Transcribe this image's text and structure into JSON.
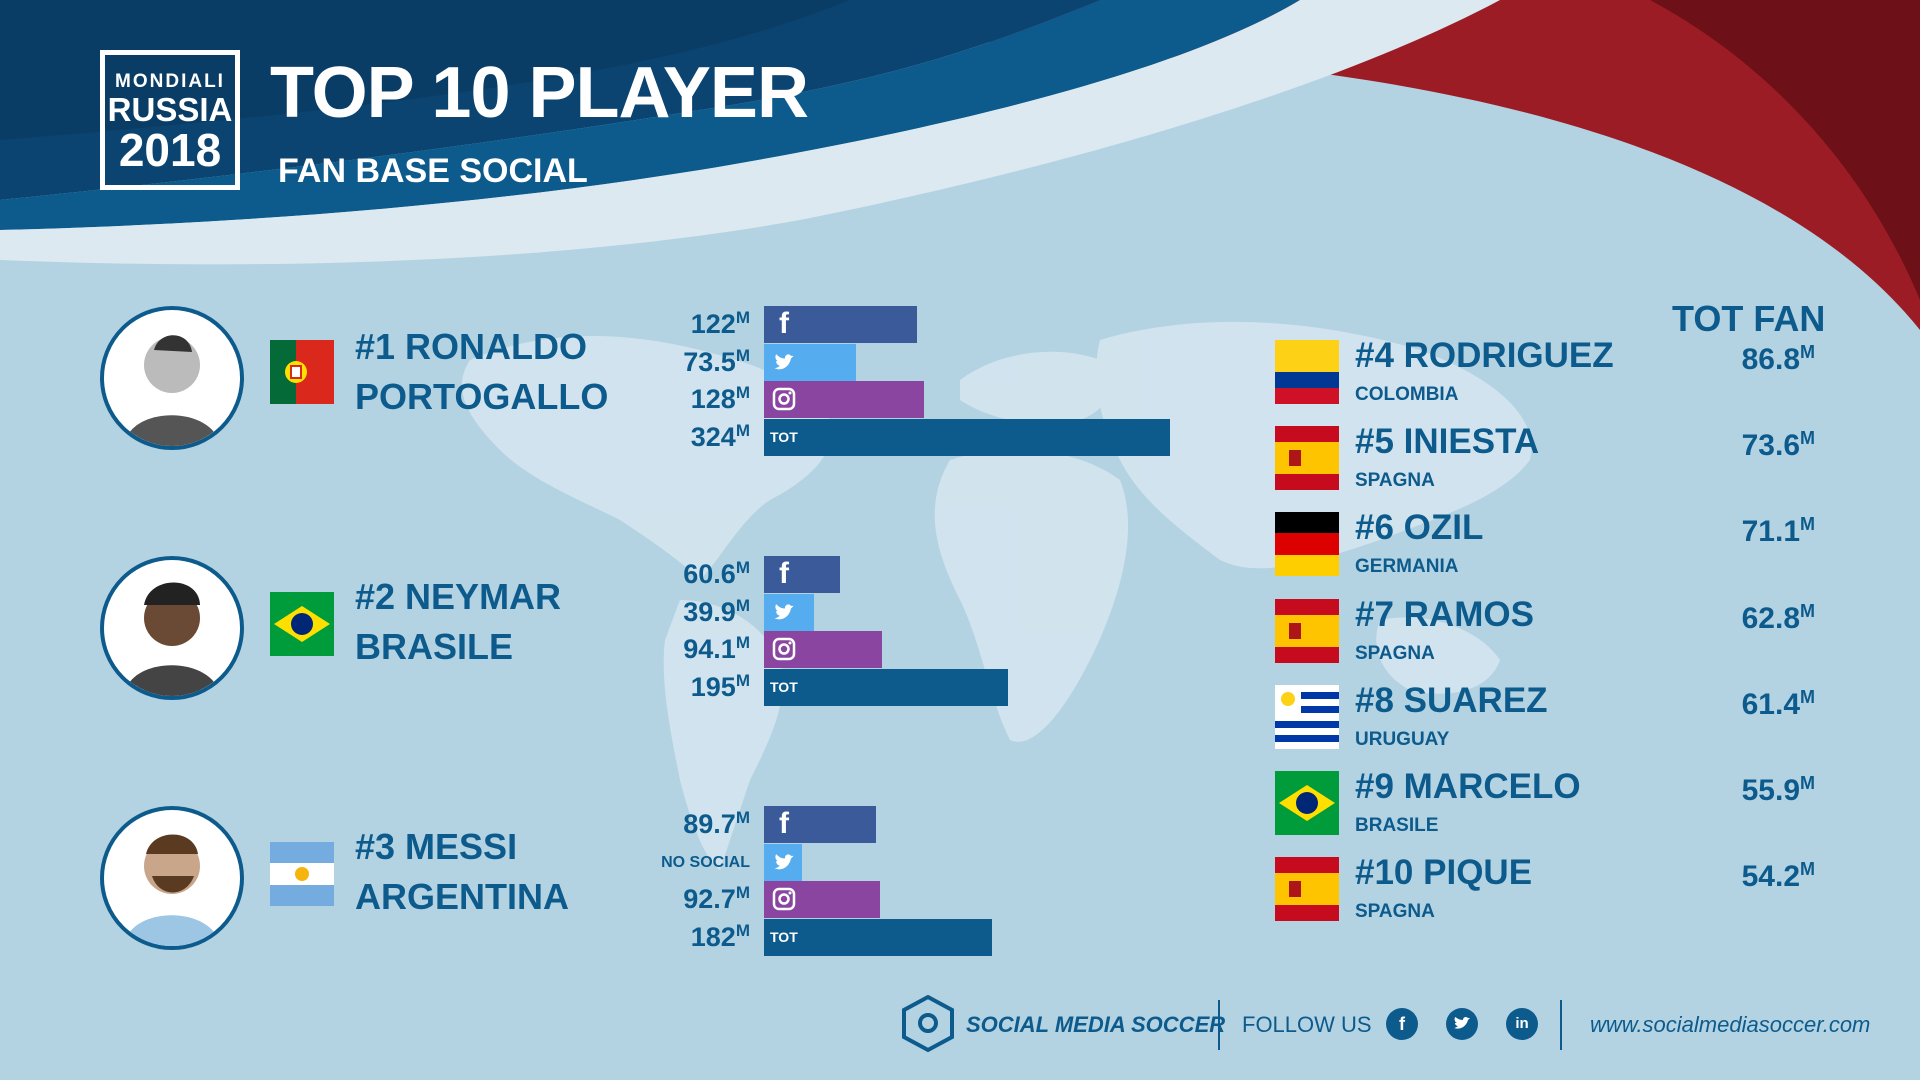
{
  "header": {
    "logo_line1": "MONDIALI",
    "logo_line2": "RUSSIA",
    "logo_line3": "2018",
    "title": "TOP 10 PLAYER",
    "subtitle": "FAN BASE SOCIAL"
  },
  "colors": {
    "navy": "#0d5b8c",
    "facebook": "#3a5a9a",
    "twitter": "#55acee",
    "instagram": "#8a45a0",
    "total": "#0d5b8c",
    "background": "#b3d3e3",
    "red": "#9c1c26"
  },
  "unit": "M",
  "bar_labels": {
    "total": "TOT",
    "no_social": "NO SOCIAL"
  },
  "chart_data": {
    "type": "bar",
    "orientation": "horizontal",
    "title": "TOP 10 PLAYER",
    "subtitle": "FAN BASE SOCIAL",
    "categories": [
      "facebook",
      "twitter",
      "instagram",
      "TOT"
    ],
    "players": [
      {
        "name": "#1 RONALDO",
        "country": "PORTOGALLO",
        "facebook": 122,
        "twitter": 73.5,
        "instagram": 128,
        "total": 324
      },
      {
        "name": "#2 NEYMAR",
        "country": "BRASILE",
        "facebook": 60.6,
        "twitter": 39.9,
        "instagram": 94.1,
        "total": 195
      },
      {
        "name": "#3 MESSI",
        "country": "ARGENTINA",
        "facebook": 89.7,
        "twitter": null,
        "instagram": 92.7,
        "total": 182
      }
    ],
    "ranking_title": "TOT FAN",
    "ranking": [
      {
        "rank": "#4 RODRIGUEZ",
        "country": "COLOMBIA",
        "flag": "colombia",
        "value": 86.8
      },
      {
        "rank": "#5 INIESTA",
        "country": "SPAGNA",
        "flag": "spain",
        "value": 73.6
      },
      {
        "rank": "#6 OZIL",
        "country": "GERMANIA",
        "flag": "germany",
        "value": 71.1
      },
      {
        "rank": "#7 RAMOS",
        "country": "SPAGNA",
        "flag": "spain",
        "value": 62.8
      },
      {
        "rank": "#8 SUAREZ",
        "country": "URUGUAY",
        "flag": "uruguay",
        "value": 61.4
      },
      {
        "rank": "#9 MARCELO",
        "country": "BRASILE",
        "flag": "brazil",
        "value": 55.9
      },
      {
        "rank": "#10 PIQUE",
        "country": "SPAGNA",
        "flag": "spain",
        "value": 54.2
      }
    ]
  },
  "footer": {
    "brand": "SOCIAL MEDIA SOCCER",
    "follow": "FOLLOW US",
    "url": "www.socialmediasoccer.com",
    "icons": [
      "facebook-icon",
      "twitter-icon",
      "linkedin-icon"
    ]
  }
}
